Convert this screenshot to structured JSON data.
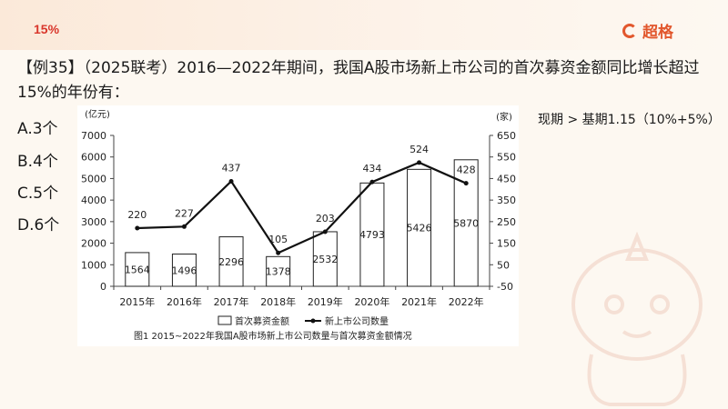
{
  "header": {
    "title": "15%",
    "brand": "超格"
  },
  "question": {
    "text": "【例35】（2025联考）2016—2022年期间，我国A股市场新上市公司的首次募资金额同比增长超过15%的年份有："
  },
  "options": [
    {
      "label": "A.3个"
    },
    {
      "label": "B.4个"
    },
    {
      "label": "C.5个"
    },
    {
      "label": "D.6个"
    }
  ],
  "hint": "现期 > 基期1.15（10%+5%）",
  "chart_data": {
    "type": "bar",
    "categories": [
      "2015年",
      "2016年",
      "2017年",
      "2018年",
      "2019年",
      "2020年",
      "2021年",
      "2022年"
    ],
    "series": [
      {
        "name": "首次募资金额",
        "type": "bar",
        "axis": "left",
        "values": [
          1564,
          1496,
          2296,
          1378,
          2532,
          4793,
          5426,
          5870
        ]
      },
      {
        "name": "新上市公司数量",
        "type": "line",
        "axis": "right",
        "values": [
          220,
          227,
          437,
          105,
          203,
          434,
          524,
          428
        ]
      }
    ],
    "left_axis": {
      "unit": "(亿元)",
      "min": 0,
      "max": 7000,
      "ticks": [
        0,
        1000,
        2000,
        3000,
        4000,
        5000,
        6000,
        7000
      ]
    },
    "right_axis": {
      "unit": "(家)",
      "min": -50,
      "max": 650,
      "ticks": [
        -50,
        50,
        150,
        250,
        350,
        450,
        550,
        650
      ]
    },
    "caption": "图1  2015~2022年我国A股市场新上市公司数量与首次募资金额情况",
    "legend_position": "bottom",
    "colors": {
      "bar_fill": "#ffffff",
      "bar_stroke": "#222222",
      "line": "#111111"
    }
  }
}
